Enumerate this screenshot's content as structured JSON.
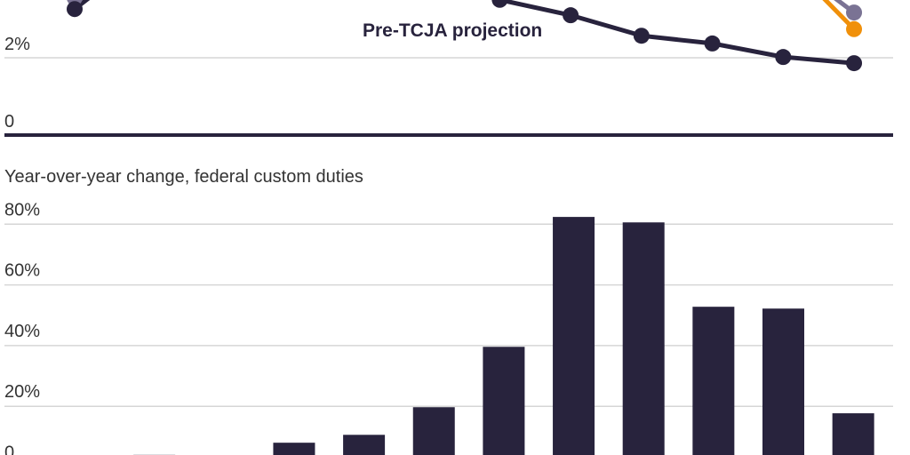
{
  "colors": {
    "dark": "#28233d",
    "gray": "#7a7394",
    "orange": "#f0900a",
    "grid": "#d6d6d6"
  },
  "chart_data": [
    {
      "type": "line",
      "ylim": [
        0,
        3.6
      ],
      "y_ticks": [
        {
          "value": 0,
          "label": "0"
        },
        {
          "value": 2,
          "label": "2%"
        }
      ],
      "grid": true,
      "annotations": [
        {
          "text": "Pre-TCJA projection"
        }
      ],
      "series": [
        {
          "name": "Pre-TCJA projection",
          "color": "#28233d",
          "values": [
            3.26,
            null,
            null,
            null,
            null,
            null,
            3.5,
            3.1,
            2.57,
            2.37,
            2.02,
            1.86
          ]
        },
        {
          "color": "#7a7394",
          "values": [
            3.55,
            null,
            null,
            null,
            null,
            null,
            null,
            null,
            null,
            null,
            null,
            3.17
          ]
        },
        {
          "color": "#f0900a",
          "values": [
            null,
            null,
            null,
            null,
            null,
            null,
            null,
            null,
            null,
            null,
            null,
            2.74
          ]
        }
      ]
    },
    {
      "type": "bar",
      "subtitle": "Year-over-year change, federal custom duties",
      "ylim": [
        0,
        90
      ],
      "y_ticks": [
        {
          "value": 0,
          "label": "0"
        },
        {
          "value": 20,
          "label": "20%"
        },
        {
          "value": 40,
          "label": "40%"
        },
        {
          "value": 60,
          "label": "60%"
        },
        {
          "value": 80,
          "label": "80%"
        }
      ],
      "grid": true,
      "values": [
        null,
        4,
        null,
        8,
        10.6,
        19.7,
        39.6,
        82.4,
        80.6,
        52.8,
        52.2,
        17.7
      ]
    }
  ]
}
